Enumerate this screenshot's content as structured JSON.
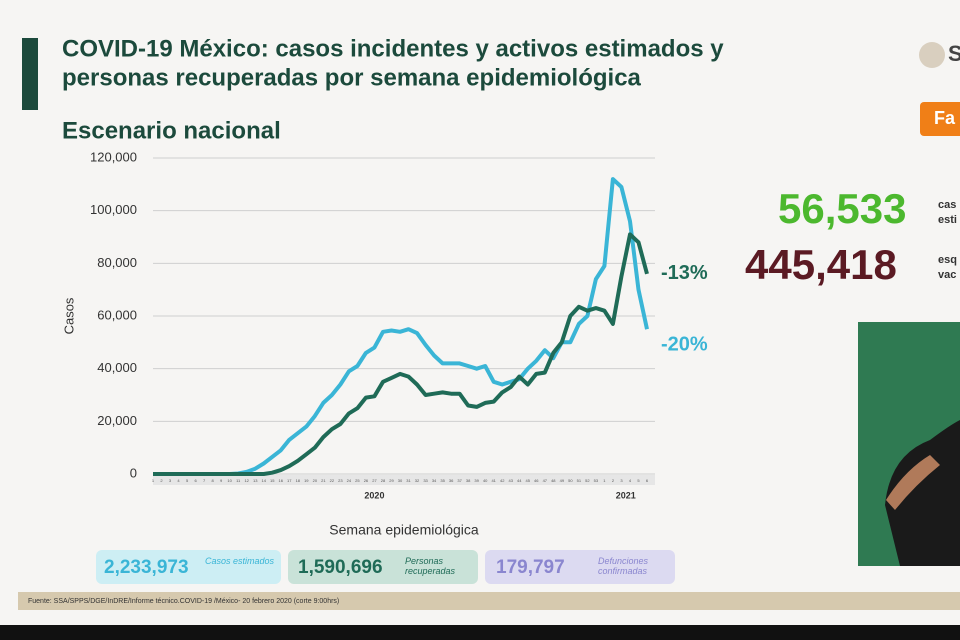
{
  "header": {
    "title_line1": "COVID-19 México: casos incidentes y activos estimados y",
    "title_line2": "personas recuperadas por semana epidemiológica",
    "subtitle": "Escenario nacional",
    "logo": "S",
    "button": "Fa"
  },
  "stats": [
    {
      "value": "56,533",
      "label1": "cas",
      "label2": "esti"
    },
    {
      "value": "445,418",
      "label1": "esq",
      "label2": "vac"
    }
  ],
  "boxes": [
    {
      "value": "2,233,973",
      "label": "Casos estimados"
    },
    {
      "value": "1,590,696",
      "label": "Personas recuperadas"
    },
    {
      "value": "179,797",
      "label": "Defunciones confirmadas"
    }
  ],
  "footer": "Fuente: SSA/SPPS/DGE/InDRE/Informe técnico.COVID-19 /México- 20 febrero 2020 (corte 9:00hrs)",
  "chart_data": {
    "type": "line",
    "y_label": "Casos",
    "x_label": "Semana epidemiológica",
    "categories": [
      "1",
      "2",
      "3",
      "4",
      "5",
      "6",
      "7",
      "8",
      "9",
      "10",
      "11",
      "12",
      "13",
      "14",
      "15",
      "16",
      "17",
      "18",
      "19",
      "20",
      "21",
      "22",
      "23",
      "24",
      "25",
      "26",
      "27",
      "28",
      "29",
      "30",
      "31",
      "32",
      "33",
      "34",
      "35",
      "36",
      "37",
      "38",
      "39",
      "40",
      "41",
      "42",
      "43",
      "44",
      "45",
      "46",
      "47",
      "48",
      "49",
      "50",
      "51",
      "52",
      "53",
      "1",
      "2",
      "3",
      "4",
      "5",
      "6"
    ],
    "year_labels": [
      "2020",
      "2021"
    ],
    "series": [
      {
        "color": "#3ab5d6",
        "values": [
          0,
          0,
          0,
          0,
          0,
          0,
          0,
          0,
          0,
          0,
          200,
          800,
          2000,
          4000,
          6500,
          9000,
          13000,
          15500,
          18000,
          22000,
          27000,
          30000,
          34000,
          39000,
          41000,
          46000,
          48000,
          54000,
          54500,
          54000,
          55000,
          53500,
          49000,
          45000,
          42000,
          42000,
          42000,
          41000,
          40000,
          41000,
          35000,
          34000,
          35000,
          36000,
          40000,
          43000,
          47000,
          44000,
          50000,
          50000,
          57000,
          60000,
          74000,
          79000,
          112000,
          109000,
          96000,
          70000,
          55000
        ]
      },
      {
        "color": "#1f6b57",
        "values": [
          0,
          0,
          0,
          0,
          0,
          0,
          0,
          0,
          0,
          0,
          0,
          0,
          0,
          0,
          500,
          1500,
          3000,
          5000,
          7500,
          10000,
          14000,
          17000,
          19000,
          23000,
          25000,
          29000,
          29500,
          35000,
          36500,
          38000,
          37000,
          34000,
          30000,
          30500,
          31000,
          30500,
          30500,
          26000,
          25500,
          27000,
          27500,
          31000,
          33000,
          37000,
          34000,
          38000,
          38500,
          46000,
          50000,
          60000,
          63500,
          62000,
          63000,
          62000,
          57000,
          75000,
          91000,
          88000,
          76000
        ]
      }
    ],
    "annotations": [
      {
        "text": "-13%",
        "color": "#1f6b57"
      },
      {
        "text": "-20%",
        "color": "#3ab5d6"
      }
    ],
    "ylim": [
      0,
      120000
    ],
    "yticks": [
      0,
      {
        "value": 20000,
        "label": "20,000"
      },
      {
        "value": 40000,
        "label": "40,000"
      },
      {
        "value": 60000,
        "label": "60,000"
      },
      {
        "value": 80000,
        "label": "80,000"
      },
      {
        "value": 100000,
        "label": "100,000"
      },
      {
        "value": 120000,
        "label": "120,000"
      }
    ],
    "grid": true
  }
}
